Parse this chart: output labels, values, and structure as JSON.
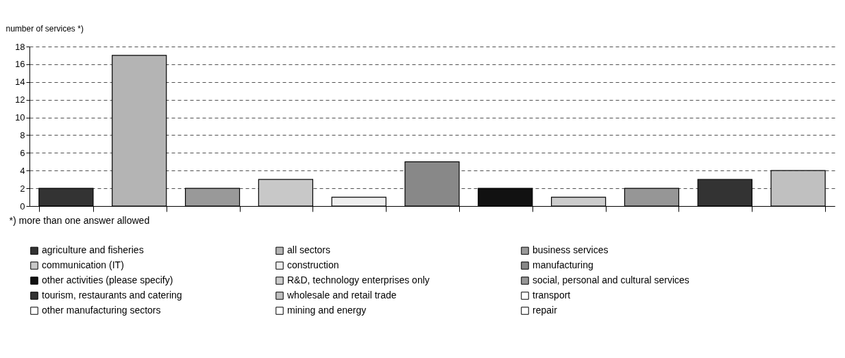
{
  "chart_data": {
    "type": "bar",
    "ylabel": "number of services *)",
    "annotations": [
      "*) more than one answer allowed"
    ],
    "categories": [
      null,
      null,
      null,
      null,
      null,
      null,
      null,
      null,
      null,
      null,
      null
    ],
    "series": [
      {
        "name": "agriculture and fisheries",
        "color": "#333333",
        "values": [
          2,
          null,
          null,
          null,
          null,
          null,
          null,
          null,
          null,
          null,
          null
        ]
      },
      {
        "name": "all sectors",
        "color": "#b4b4b4",
        "values": [
          null,
          17,
          null,
          null,
          null,
          null,
          null,
          null,
          null,
          null,
          null
        ]
      },
      {
        "name": "business services",
        "color": "#999999",
        "values": [
          null,
          null,
          2,
          null,
          null,
          null,
          null,
          null,
          null,
          null,
          null
        ]
      },
      {
        "name": "communication (IT)",
        "color": "#c8c8c8",
        "values": [
          null,
          null,
          null,
          3,
          null,
          null,
          null,
          null,
          null,
          null,
          null
        ]
      },
      {
        "name": "construction",
        "color": "#eeeeee",
        "values": [
          null,
          null,
          null,
          null,
          1,
          null,
          null,
          null,
          null,
          null,
          null
        ]
      },
      {
        "name": "manufacturing",
        "color": "#888888",
        "values": [
          null,
          null,
          null,
          null,
          null,
          5,
          null,
          null,
          null,
          null,
          null
        ]
      },
      {
        "name": "other activities (please specify)",
        "color": "#111111",
        "values": [
          null,
          null,
          null,
          null,
          null,
          null,
          2,
          null,
          null,
          null,
          null
        ]
      },
      {
        "name": "R&D, technology enterprises only",
        "color": "#cccccc",
        "values": [
          null,
          null,
          null,
          null,
          null,
          null,
          null,
          1,
          null,
          null,
          null
        ]
      },
      {
        "name": "social, personal and cultural services",
        "color": "#969696",
        "values": [
          null,
          null,
          null,
          null,
          null,
          null,
          null,
          null,
          2,
          null,
          null
        ]
      },
      {
        "name": "tourism, restaurants and catering",
        "color": "#333333",
        "values": [
          null,
          null,
          null,
          null,
          null,
          null,
          null,
          null,
          null,
          3,
          null
        ]
      },
      {
        "name": "wholesale and retail trade",
        "color": "#c0c0c0",
        "values": [
          null,
          null,
          null,
          null,
          null,
          null,
          null,
          null,
          null,
          null,
          4
        ]
      },
      {
        "name": "transport",
        "color": "#ffffff",
        "values": [
          null,
          null,
          null,
          null,
          null,
          null,
          null,
          null,
          null,
          null,
          null
        ]
      },
      {
        "name": "other manufacturing sectors",
        "color": "#ffffff",
        "values": [
          null,
          null,
          null,
          null,
          null,
          null,
          null,
          null,
          null,
          null,
          null
        ]
      },
      {
        "name": "mining and energy",
        "color": "#ffffff",
        "values": [
          null,
          null,
          null,
          null,
          null,
          null,
          null,
          null,
          null,
          null,
          null
        ]
      },
      {
        "name": "repair",
        "color": "#ffffff",
        "values": [
          null,
          null,
          null,
          null,
          null,
          null,
          null,
          null,
          null,
          null,
          null
        ]
      }
    ],
    "ylim": [
      0,
      18
    ],
    "yticks": [
      0,
      2,
      4,
      6,
      8,
      10,
      12,
      14,
      16,
      18
    ],
    "grid": "y",
    "legend": "bottom"
  }
}
